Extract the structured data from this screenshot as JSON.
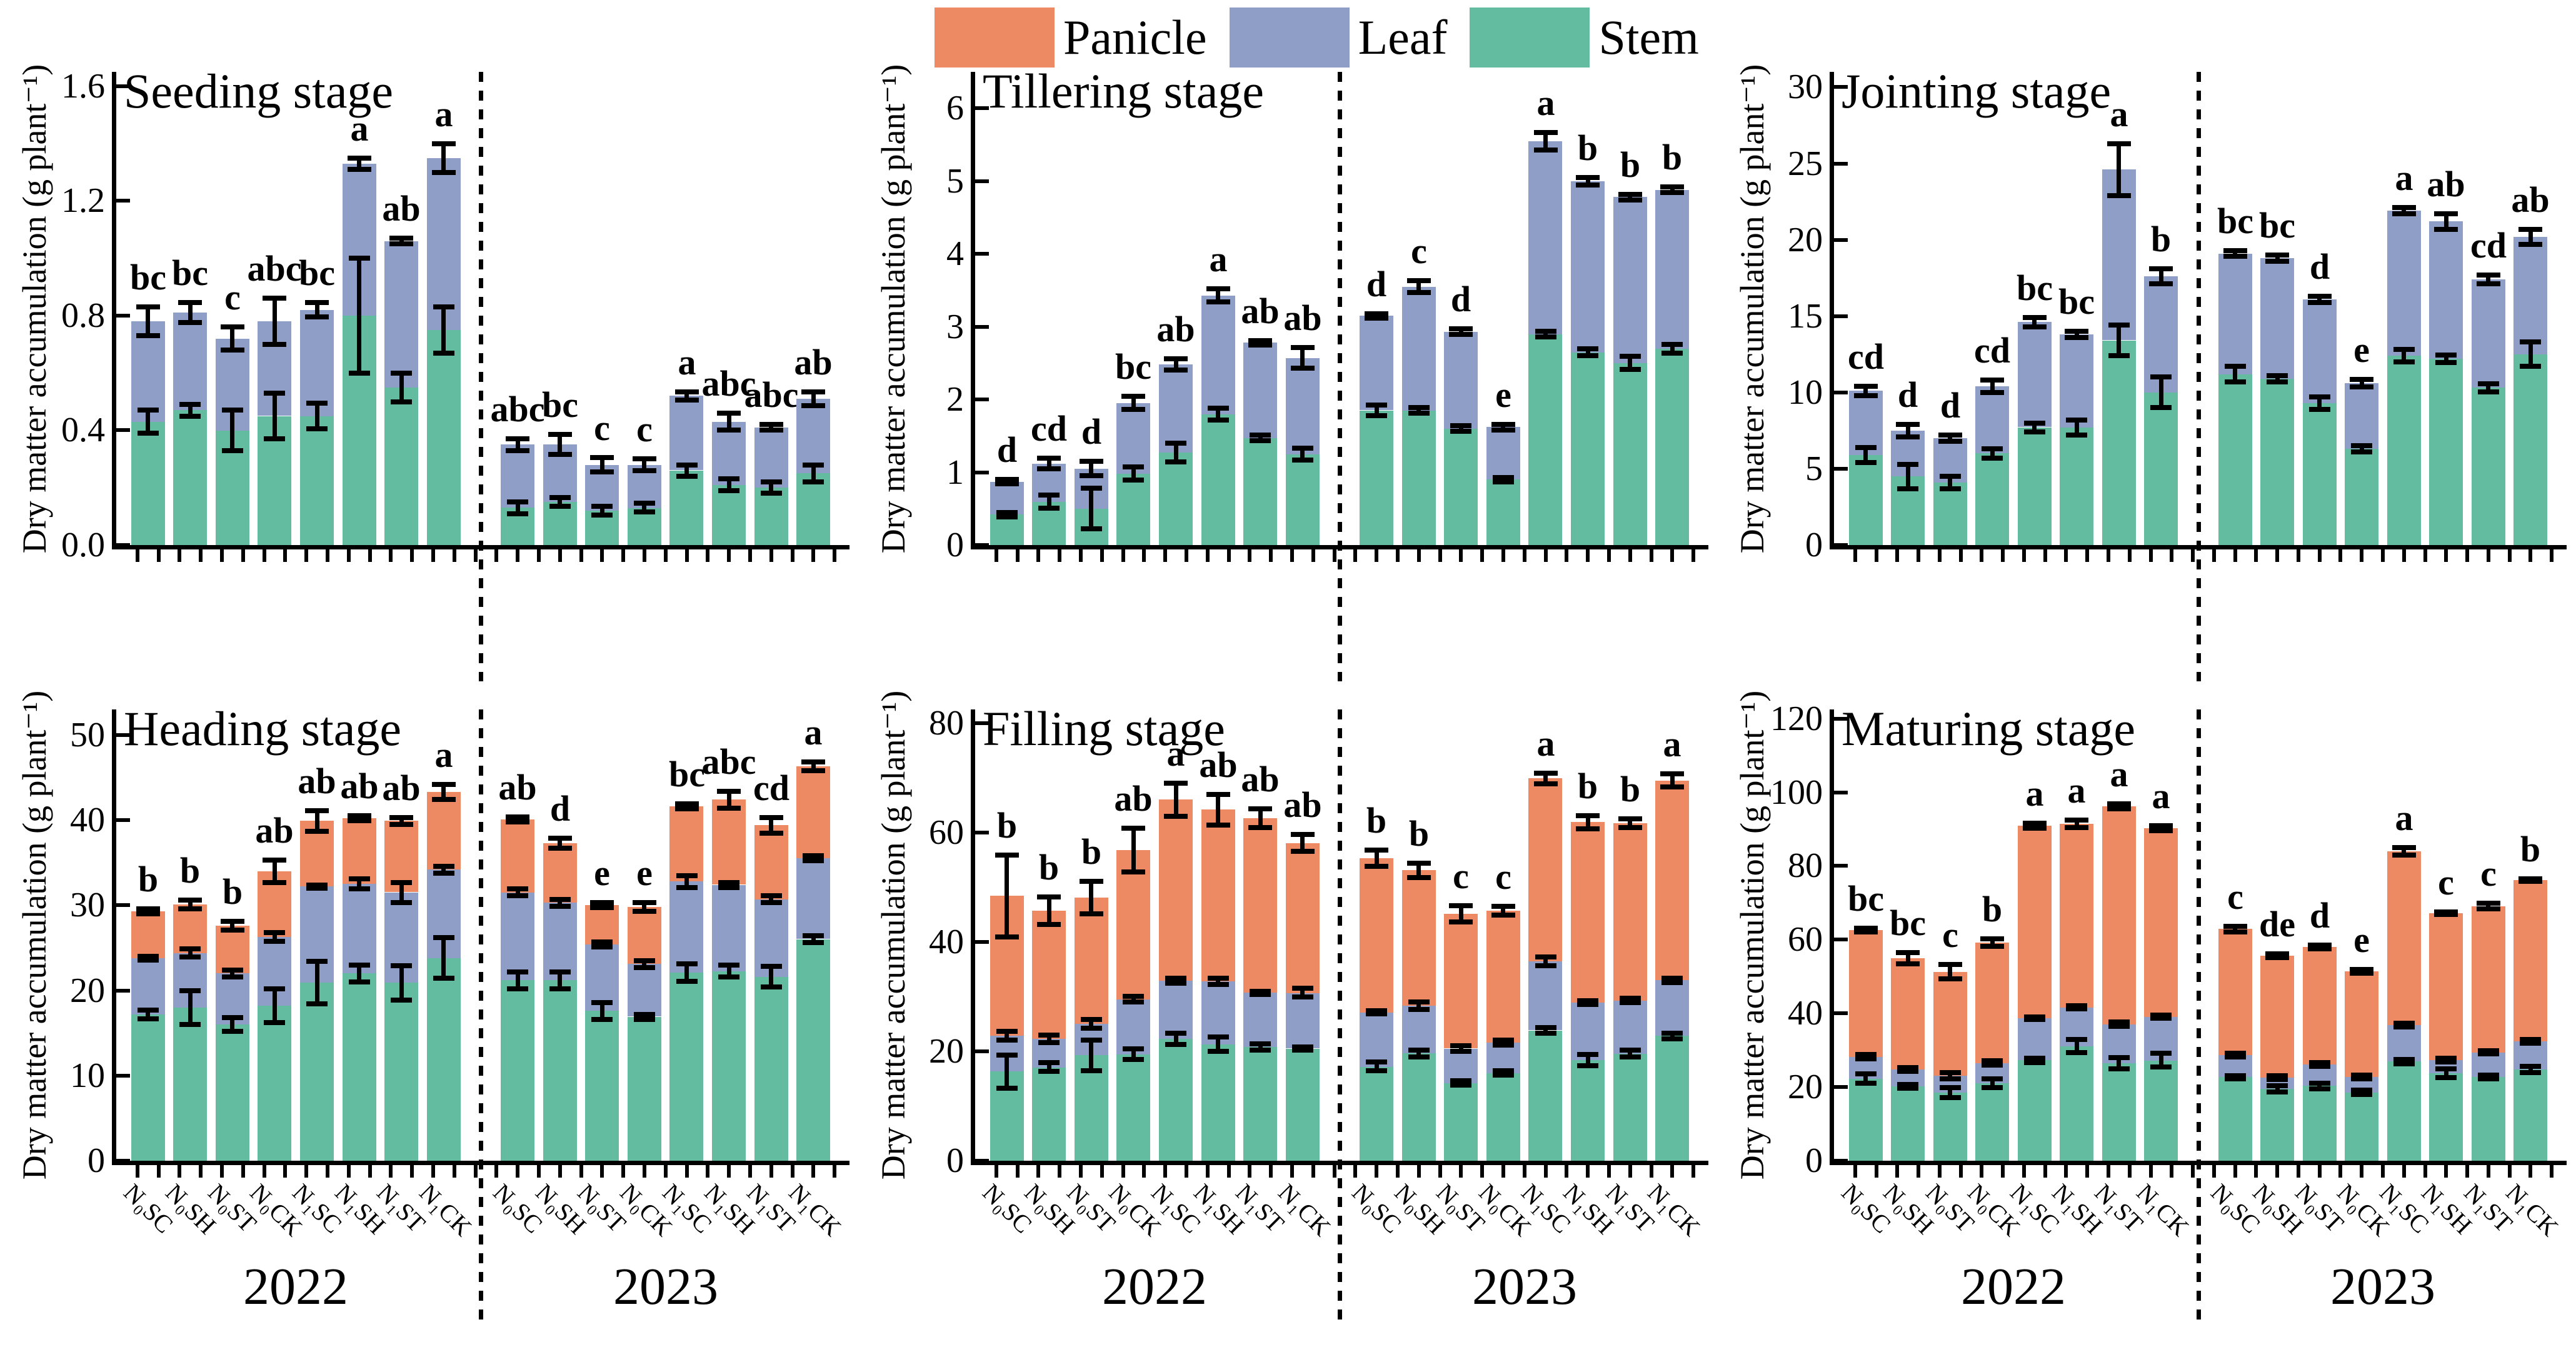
{
  "colors": {
    "panicle": "#EE8A63",
    "leaf": "#8F9EC6",
    "stem": "#63BBA0",
    "error": "#000000"
  },
  "legend": {
    "items": [
      {
        "label": "Panicle",
        "color": "#EE8A63"
      },
      {
        "label": "Leaf",
        "color": "#8F9EC6"
      },
      {
        "label": "Stem",
        "color": "#63BBA0"
      }
    ]
  },
  "x_labels": [
    "N₀SC",
    "N₀SH",
    "N₀ST",
    "N₀CK",
    "N₁SC",
    "N₁SH",
    "N₁ST",
    "N₁CK"
  ],
  "years": [
    "2022",
    "2023"
  ],
  "chart_data": [
    {
      "type": "bar",
      "stacked": true,
      "title": "Seeding stage",
      "ylabel": "Dry matter accumulation (g plant⁻¹)",
      "ylim": [
        0,
        1.65
      ],
      "yticks": [
        "0.0",
        "0.4",
        "0.8",
        "1.2",
        "1.6"
      ],
      "ytick_values": [
        0,
        0.4,
        0.8,
        1.2,
        1.6
      ],
      "groups": [
        {
          "year": "2022",
          "series": {
            "stem": [
              0.43,
              0.47,
              0.4,
              0.45,
              0.45,
              0.8,
              0.55,
              0.75
            ],
            "leaf": [
              0.35,
              0.34,
              0.32,
              0.33,
              0.37,
              0.53,
              0.51,
              0.6
            ],
            "panicle": null
          },
          "letters": [
            "bc",
            "bc",
            "c",
            "abc",
            "bc",
            "a",
            "ab",
            "a"
          ],
          "err_total": [
            0.05,
            0.035,
            0.04,
            0.08,
            0.025,
            0.02,
            0.01,
            0.05
          ],
          "err_stem": [
            0.04,
            0.02,
            0.07,
            0.08,
            0.045,
            0.2,
            0.05,
            0.08
          ],
          "err_leaf": null
        },
        {
          "year": "2023",
          "series": {
            "stem": [
              0.13,
              0.15,
              0.12,
              0.13,
              0.26,
              0.21,
              0.2,
              0.25
            ],
            "leaf": [
              0.22,
              0.2,
              0.16,
              0.15,
              0.26,
              0.22,
              0.21,
              0.26
            ],
            "panicle": null
          },
          "letters": [
            "abc",
            "bc",
            "c",
            "c",
            "a",
            "abc",
            "abc",
            "ab"
          ],
          "err_total": [
            0.02,
            0.035,
            0.025,
            0.02,
            0.015,
            0.03,
            0.01,
            0.025
          ],
          "err_stem": [
            0.02,
            0.015,
            0.015,
            0.015,
            0.02,
            0.02,
            0.02,
            0.03
          ],
          "err_leaf": null
        }
      ]
    },
    {
      "type": "bar",
      "stacked": true,
      "title": "Tillering stage",
      "ylabel": "Dry matter accumulation (g plant⁻¹)",
      "ylim": [
        0,
        6.5
      ],
      "yticks": [
        "0",
        "1",
        "2",
        "3",
        "4",
        "5",
        "6"
      ],
      "ytick_values": [
        0,
        1,
        2,
        3,
        4,
        5,
        6
      ],
      "groups": [
        {
          "year": "2022",
          "series": {
            "stem": [
              0.42,
              0.6,
              0.5,
              0.98,
              1.27,
              1.8,
              1.47,
              1.25
            ],
            "leaf": [
              0.45,
              0.52,
              0.55,
              0.97,
              1.21,
              1.63,
              1.31,
              1.32
            ],
            "panicle": null
          },
          "letters": [
            "d",
            "cd",
            "d",
            "bc",
            "ab",
            "a",
            "ab",
            "ab"
          ],
          "err_total": [
            0.03,
            0.07,
            0.1,
            0.09,
            0.08,
            0.09,
            0.03,
            0.14
          ],
          "err_stem": [
            0.03,
            0.09,
            0.28,
            0.09,
            0.13,
            0.08,
            0.04,
            0.08
          ],
          "err_leaf": null
        },
        {
          "year": "2023",
          "series": {
            "stem": [
              1.85,
              1.85,
              1.6,
              0.9,
              2.9,
              2.65,
              2.5,
              2.7
            ],
            "leaf": [
              1.3,
              1.7,
              1.33,
              0.72,
              2.65,
              2.35,
              2.28,
              2.18
            ],
            "panicle": null
          },
          "letters": [
            "d",
            "c",
            "d",
            "e",
            "a",
            "b",
            "b",
            "b"
          ],
          "err_total": [
            0.03,
            0.08,
            0.04,
            0.04,
            0.12,
            0.05,
            0.04,
            0.04
          ],
          "err_stem": [
            0.07,
            0.04,
            0.04,
            0.03,
            0.04,
            0.05,
            0.09,
            0.06
          ],
          "err_leaf": null
        }
      ]
    },
    {
      "type": "bar",
      "stacked": true,
      "title": "Jointing stage",
      "ylabel": "Dry matter accumulation (g plant⁻¹)",
      "ylim": [
        0,
        31
      ],
      "yticks": [
        "0",
        "5",
        "10",
        "15",
        "20",
        "25",
        "30"
      ],
      "ytick_values": [
        0,
        5,
        10,
        15,
        20,
        25,
        30
      ],
      "groups": [
        {
          "year": "2022",
          "series": {
            "stem": [
              5.9,
              4.5,
              4.1,
              6.0,
              7.7,
              7.7,
              13.4,
              10.0
            ],
            "leaf": [
              4.2,
              3.0,
              2.9,
              4.4,
              6.9,
              6.1,
              11.2,
              7.6
            ],
            "panicle": null
          },
          "letters": [
            "cd",
            "d",
            "d",
            "cd",
            "bc",
            "bc",
            "a",
            "b"
          ],
          "err_total": [
            0.3,
            0.4,
            0.2,
            0.4,
            0.3,
            0.2,
            1.7,
            0.5
          ],
          "err_stem": [
            0.5,
            0.8,
            0.4,
            0.3,
            0.3,
            0.5,
            1.0,
            1.0
          ],
          "err_leaf": null
        },
        {
          "year": "2023",
          "series": {
            "stem": [
              11.2,
              10.9,
              9.3,
              6.3,
              12.4,
              12.2,
              10.3,
              12.5
            ],
            "leaf": [
              7.9,
              7.9,
              6.8,
              4.3,
              9.5,
              9.0,
              7.1,
              7.7
            ],
            "panicle": null
          },
          "letters": [
            "bc",
            "bc",
            "d",
            "e",
            "a",
            "ab",
            "cd",
            "ab"
          ],
          "err_total": [
            0.2,
            0.2,
            0.2,
            0.25,
            0.2,
            0.5,
            0.3,
            0.5
          ],
          "err_stem": [
            0.5,
            0.2,
            0.4,
            0.2,
            0.4,
            0.25,
            0.25,
            0.8
          ],
          "err_leaf": null
        }
      ]
    },
    {
      "type": "bar",
      "stacked": true,
      "title": "Heading stage",
      "ylabel": "Dry matter accumulation (g plant⁻¹)",
      "ylim": [
        0,
        53
      ],
      "yticks": [
        "0",
        "10",
        "20",
        "30",
        "40",
        "50"
      ],
      "ytick_values": [
        0,
        10,
        20,
        30,
        40,
        50
      ],
      "groups": [
        {
          "year": "2022",
          "series": {
            "stem": [
              17.2,
              18.0,
              16.0,
              18.2,
              20.9,
              22.0,
              20.9,
              23.8
            ],
            "leaf": [
              6.6,
              6.4,
              6.0,
              8.1,
              11.3,
              10.5,
              10.6,
              10.4
            ],
            "panicle": [
              5.5,
              5.7,
              5.6,
              7.7,
              7.7,
              7.7,
              8.4,
              9.1
            ]
          },
          "letters": [
            "b",
            "b",
            "b",
            "ab",
            "ab",
            "ab",
            "ab",
            "a"
          ],
          "err_total": [
            0.3,
            0.5,
            0.5,
            1.3,
            1.2,
            0.3,
            0.4,
            0.9
          ],
          "err_stem": [
            0.5,
            2.0,
            0.8,
            2.0,
            2.5,
            1.0,
            2.0,
            2.4
          ],
          "err_leaf": [
            0.2,
            0.5,
            0.4,
            0.5,
            0.2,
            0.6,
            1.2,
            0.4
          ]
        },
        {
          "year": "2023",
          "series": {
            "stem": [
              21.2,
              21.2,
              17.6,
              16.9,
              22.1,
              22.3,
              21.6,
              26.0
            ],
            "leaf": [
              10.3,
              9.1,
              7.8,
              6.2,
              10.7,
              10.1,
              9.1,
              9.5
            ],
            "panicle": [
              8.6,
              7.0,
              4.6,
              6.7,
              8.8,
              10.0,
              8.7,
              10.8
            ]
          },
          "letters": [
            "ab",
            "d",
            "e",
            "e",
            "bc",
            "abc",
            "cd",
            "a"
          ],
          "err_total": [
            0.3,
            0.6,
            0.3,
            0.5,
            0.3,
            1.0,
            0.9,
            0.5
          ],
          "err_stem": [
            1.0,
            1.0,
            1.0,
            0.3,
            1.0,
            0.7,
            1.2,
            0.4
          ],
          "err_leaf": [
            0.4,
            0.4,
            0.3,
            0.4,
            0.7,
            0.3,
            0.4,
            0.3
          ]
        }
      ]
    },
    {
      "type": "bar",
      "stacked": true,
      "title": "Filling stage",
      "ylabel": "Dry matter accumulation (g plant⁻¹)",
      "ylim": [
        0,
        82.5
      ],
      "yticks": [
        "0",
        "20",
        "40",
        "60",
        "80"
      ],
      "ytick_values": [
        0,
        20,
        40,
        60,
        80
      ],
      "groups": [
        {
          "year": "2022",
          "series": {
            "stem": [
              16.3,
              17.1,
              19.3,
              19.5,
              22.3,
              21.3,
              20.8,
              20.5
            ],
            "leaf": [
              6.5,
              5.2,
              5.7,
              10.0,
              10.6,
              11.5,
              9.9,
              10.2
            ],
            "panicle": [
              25.6,
              23.4,
              23.1,
              27.3,
              33.1,
              31.4,
              31.9,
              27.4
            ]
          },
          "letters": [
            "b",
            "b",
            "b",
            "ab",
            "a",
            "ab",
            "ab",
            "ab"
          ],
          "err_total": [
            7.5,
            2.5,
            3.0,
            4.0,
            3.0,
            2.8,
            1.7,
            1.5
          ],
          "err_stem": [
            3.0,
            0.8,
            2.8,
            1.0,
            1.0,
            1.3,
            0.6,
            0.3
          ],
          "err_leaf": [
            0.8,
            0.7,
            0.8,
            0.5,
            0.5,
            0.6,
            0.3,
            0.8
          ]
        },
        {
          "year": "2023",
          "series": {
            "stem": [
              17.2,
              19.6,
              14.2,
              16.0,
              23.8,
              18.4,
              19.6,
              22.8
            ],
            "leaf": [
              9.9,
              8.7,
              6.3,
              5.6,
              12.6,
              10.5,
              9.7,
              10.2
            ],
            "panicle": [
              28.2,
              24.8,
              24.6,
              24.1,
              33.5,
              33.0,
              32.4,
              36.5
            ]
          },
          "letters": [
            "b",
            "b",
            "c",
            "c",
            "a",
            "b",
            "b",
            "a"
          ],
          "err_total": [
            1.5,
            1.3,
            1.5,
            0.8,
            1.0,
            1.2,
            0.8,
            1.2
          ],
          "err_stem": [
            0.8,
            0.6,
            0.4,
            0.4,
            0.5,
            1.0,
            0.6,
            0.5
          ],
          "err_leaf": [
            0.3,
            0.7,
            0.5,
            0.5,
            0.8,
            0.3,
            0.4,
            0.4
          ]
        }
      ]
    },
    {
      "type": "bar",
      "stacked": true,
      "title": "Maturing stage",
      "ylabel": "Dry matter accumulation (g plant⁻¹)",
      "ylim": [
        0,
        122.5
      ],
      "yticks": [
        "0",
        "20",
        "40",
        "60",
        "80",
        "100",
        "120"
      ],
      "ytick_values": [
        0,
        20,
        40,
        60,
        80,
        100,
        120
      ],
      "groups": [
        {
          "year": "2022",
          "series": {
            "stem": [
              22.3,
              20.2,
              18.5,
              21.0,
              27.3,
              31.1,
              26.5,
              27.3
            ],
            "leaf": [
              5.9,
              4.6,
              4.6,
              5.5,
              11.4,
              10.5,
              10.5,
              11.8
            ],
            "panicle": [
              34.4,
              30.2,
              28.2,
              32.7,
              52.2,
              49.8,
              59.2,
              51.2
            ]
          },
          "letters": [
            "bc",
            "bc",
            "c",
            "b",
            "a",
            "a",
            "a",
            "a"
          ],
          "err_total": [
            0.5,
            1.5,
            2.0,
            1.0,
            0.7,
            1.0,
            0.7,
            0.7
          ],
          "err_stem": [
            1.2,
            0.5,
            1.3,
            1.2,
            0.6,
            1.8,
            1.5,
            1.8
          ],
          "err_leaf": [
            0.6,
            0.5,
            0.8,
            0.6,
            0.4,
            0.4,
            0.6,
            0.5
          ]
        },
        {
          "year": "2023",
          "series": {
            "stem": [
              22.7,
              19.5,
              20.3,
              18.5,
              26.9,
              23.7,
              22.7,
              24.8
            ],
            "leaf": [
              6.0,
              3.0,
              5.8,
              4.2,
              9.9,
              3.6,
              6.7,
              7.6
            ],
            "panicle": [
              34.2,
              33.1,
              31.9,
              28.7,
              47.2,
              39.9,
              39.7,
              43.8
            ]
          },
          "letters": [
            "c",
            "de",
            "d",
            "e",
            "a",
            "c",
            "c",
            "b"
          ],
          "err_total": [
            0.8,
            0.5,
            0.5,
            0.5,
            1.0,
            0.4,
            0.8,
            0.4
          ],
          "err_stem": [
            0.4,
            0.8,
            0.8,
            0.6,
            0.6,
            1.2,
            0.5,
            0.8
          ],
          "err_leaf": [
            0.5,
            0.5,
            0.5,
            0.5,
            0.5,
            0.5,
            0.4,
            0.5
          ]
        }
      ]
    }
  ]
}
